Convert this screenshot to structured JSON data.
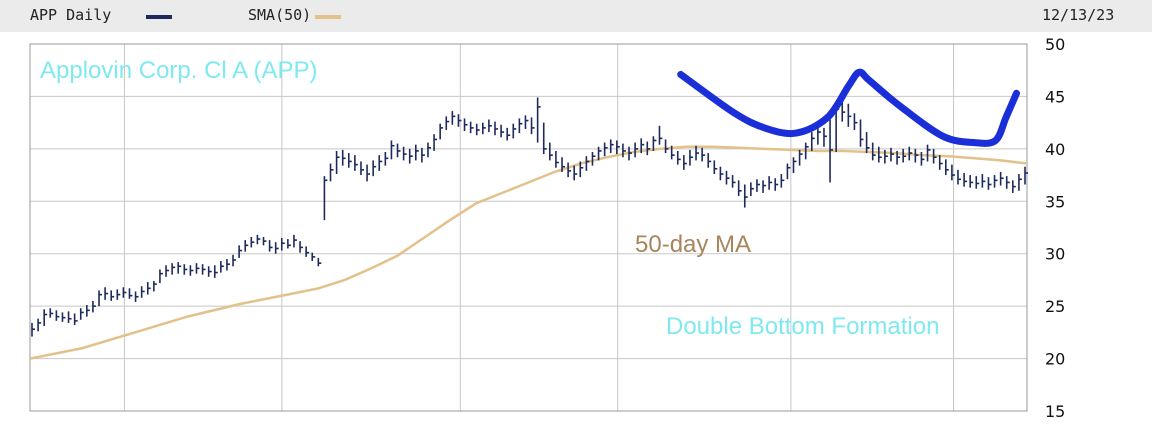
{
  "header": {
    "symbol_label": "APP Daily",
    "sma_label": "SMA(50)",
    "date": "12/13/23"
  },
  "colors": {
    "price": "#1e2a5c",
    "sma": "#e3c18a",
    "header_bg": "#ebebeb",
    "grid": "#c8c8c8",
    "annotation_cyan": "#7fe9f0",
    "annotation_brown": "#a8855c",
    "drawing_blue": "#1b2fd9"
  },
  "chart_data": {
    "type": "ohlc",
    "title": "APP Daily",
    "y_axis_side": "right",
    "ylim": [
      15,
      50
    ],
    "yticks": [
      50,
      45,
      40,
      35,
      30,
      25,
      20,
      15
    ],
    "xlim": [
      0,
      190
    ],
    "x_gridlines": [
      18,
      48,
      82,
      112,
      145,
      176
    ],
    "legend": [
      "APP Daily",
      "SMA(50)"
    ],
    "grid": true,
    "annotations": [
      {
        "id": "company",
        "text": "Applovin Corp. Cl A (APP)"
      },
      {
        "id": "ma",
        "text": "50-day MA"
      },
      {
        "id": "pattern",
        "text": "Double Bottom Formation"
      }
    ],
    "drawn_curve": [
      [
        124,
        47.1
      ],
      [
        134,
        43.5
      ],
      [
        140,
        42.0
      ],
      [
        146,
        41.5
      ],
      [
        152,
        43.0
      ],
      [
        156,
        46.0
      ],
      [
        158,
        47.3
      ],
      [
        160,
        46.5
      ],
      [
        166,
        44.0
      ],
      [
        174,
        41.2
      ],
      [
        180,
        40.6
      ],
      [
        184,
        40.8
      ],
      [
        186,
        43.0
      ],
      [
        188,
        45.3
      ]
    ],
    "sma_series": [
      [
        0,
        20.0
      ],
      [
        10,
        21.0
      ],
      [
        20,
        22.5
      ],
      [
        30,
        24.0
      ],
      [
        40,
        25.2
      ],
      [
        50,
        26.2
      ],
      [
        55,
        26.7
      ],
      [
        60,
        27.5
      ],
      [
        65,
        28.6
      ],
      [
        70,
        29.8
      ],
      [
        75,
        31.5
      ],
      [
        80,
        33.2
      ],
      [
        85,
        34.8
      ],
      [
        90,
        35.8
      ],
      [
        95,
        36.8
      ],
      [
        100,
        37.8
      ],
      [
        105,
        38.6
      ],
      [
        110,
        39.2
      ],
      [
        115,
        39.7
      ],
      [
        120,
        40.0
      ],
      [
        125,
        40.2
      ],
      [
        130,
        40.2
      ],
      [
        135,
        40.1
      ],
      [
        140,
        40.0
      ],
      [
        145,
        39.9
      ],
      [
        150,
        39.8
      ],
      [
        155,
        39.8
      ],
      [
        160,
        39.7
      ],
      [
        165,
        39.6
      ],
      [
        170,
        39.4
      ],
      [
        175,
        39.3
      ],
      [
        180,
        39.1
      ],
      [
        185,
        38.9
      ],
      [
        190,
        38.6
      ]
    ],
    "price_series": [
      {
        "high": 23.4,
        "low": 22.1,
        "close": 22.8
      },
      {
        "high": 23.8,
        "low": 22.6,
        "close": 23.4
      },
      {
        "high": 24.7,
        "low": 23.1,
        "close": 24.2
      },
      {
        "high": 24.8,
        "low": 23.9,
        "close": 24.3
      },
      {
        "high": 24.6,
        "low": 23.6,
        "close": 24.0
      },
      {
        "high": 24.4,
        "low": 23.5,
        "close": 23.9
      },
      {
        "high": 24.5,
        "low": 23.4,
        "close": 23.8
      },
      {
        "high": 24.3,
        "low": 23.2,
        "close": 23.6
      },
      {
        "high": 24.8,
        "low": 23.7,
        "close": 24.4
      },
      {
        "high": 25.1,
        "low": 24.0,
        "close": 24.6
      },
      {
        "high": 25.5,
        "low": 24.4,
        "close": 25.0
      },
      {
        "high": 26.5,
        "low": 25.0,
        "close": 26.1
      },
      {
        "high": 26.8,
        "low": 25.6,
        "close": 26.2
      },
      {
        "high": 26.5,
        "low": 25.5,
        "close": 25.9
      },
      {
        "high": 26.6,
        "low": 25.6,
        "close": 26.1
      },
      {
        "high": 26.8,
        "low": 25.8,
        "close": 26.3
      },
      {
        "high": 26.7,
        "low": 25.7,
        "close": 26.0
      },
      {
        "high": 26.4,
        "low": 25.4,
        "close": 25.9
      },
      {
        "high": 26.9,
        "low": 25.8,
        "close": 26.4
      },
      {
        "high": 27.3,
        "low": 26.1,
        "close": 26.7
      },
      {
        "high": 27.4,
        "low": 26.4,
        "close": 27.1
      },
      {
        "high": 28.5,
        "low": 27.2,
        "close": 28.1
      },
      {
        "high": 28.9,
        "low": 27.8,
        "close": 28.4
      },
      {
        "high": 29.1,
        "low": 28.0,
        "close": 28.7
      },
      {
        "high": 29.2,
        "low": 28.1,
        "close": 28.8
      },
      {
        "high": 29.0,
        "low": 28.0,
        "close": 28.5
      },
      {
        "high": 28.9,
        "low": 27.9,
        "close": 28.4
      },
      {
        "high": 29.1,
        "low": 28.1,
        "close": 28.6
      },
      {
        "high": 29.0,
        "low": 28.0,
        "close": 28.5
      },
      {
        "high": 28.8,
        "low": 27.8,
        "close": 28.3
      },
      {
        "high": 28.9,
        "low": 27.7,
        "close": 28.2
      },
      {
        "high": 29.3,
        "low": 28.2,
        "close": 28.8
      },
      {
        "high": 29.5,
        "low": 28.4,
        "close": 29.0
      },
      {
        "high": 29.9,
        "low": 28.8,
        "close": 29.4
      },
      {
        "high": 30.8,
        "low": 29.6,
        "close": 30.3
      },
      {
        "high": 31.3,
        "low": 30.2,
        "close": 30.8
      },
      {
        "high": 31.6,
        "low": 30.6,
        "close": 31.1
      },
      {
        "high": 31.8,
        "low": 30.9,
        "close": 31.4
      },
      {
        "high": 31.6,
        "low": 30.8,
        "close": 31.2
      },
      {
        "high": 31.3,
        "low": 30.2,
        "close": 30.6
      },
      {
        "high": 31.1,
        "low": 30.0,
        "close": 30.5
      },
      {
        "high": 31.5,
        "low": 30.3,
        "close": 31.0
      },
      {
        "high": 31.4,
        "low": 30.5,
        "close": 30.8
      },
      {
        "high": 31.8,
        "low": 30.6,
        "close": 31.3
      },
      {
        "high": 31.2,
        "low": 30.1,
        "close": 30.6
      },
      {
        "high": 30.7,
        "low": 29.7,
        "close": 30.1
      },
      {
        "high": 30.1,
        "low": 29.3,
        "close": 29.7
      },
      {
        "high": 29.6,
        "low": 28.8,
        "close": 29.1
      },
      {
        "high": 37.4,
        "low": 33.2,
        "close": 37.0
      },
      {
        "high": 38.6,
        "low": 36.9,
        "close": 38.0
      },
      {
        "high": 39.8,
        "low": 37.6,
        "close": 39.2
      },
      {
        "high": 39.9,
        "low": 38.4,
        "close": 39.1
      },
      {
        "high": 39.6,
        "low": 38.2,
        "close": 38.8
      },
      {
        "high": 39.4,
        "low": 37.9,
        "close": 38.5
      },
      {
        "high": 38.8,
        "low": 37.5,
        "close": 38.0
      },
      {
        "high": 38.5,
        "low": 36.9,
        "close": 37.6
      },
      {
        "high": 38.9,
        "low": 37.4,
        "close": 38.3
      },
      {
        "high": 39.4,
        "low": 37.9,
        "close": 38.8
      },
      {
        "high": 39.7,
        "low": 38.4,
        "close": 39.1
      },
      {
        "high": 40.8,
        "low": 39.0,
        "close": 40.3
      },
      {
        "high": 40.5,
        "low": 39.2,
        "close": 39.8
      },
      {
        "high": 40.2,
        "low": 38.9,
        "close": 39.5
      },
      {
        "high": 40.0,
        "low": 38.6,
        "close": 39.3
      },
      {
        "high": 40.4,
        "low": 38.9,
        "close": 39.8
      },
      {
        "high": 40.1,
        "low": 38.7,
        "close": 39.4
      },
      {
        "high": 40.6,
        "low": 39.2,
        "close": 40.1
      },
      {
        "high": 41.4,
        "low": 39.8,
        "close": 40.9
      },
      {
        "high": 42.4,
        "low": 40.9,
        "close": 42.0
      },
      {
        "high": 43.1,
        "low": 41.8,
        "close": 42.6
      },
      {
        "high": 43.6,
        "low": 42.3,
        "close": 43.1
      },
      {
        "high": 43.3,
        "low": 42.1,
        "close": 42.7
      },
      {
        "high": 42.9,
        "low": 41.7,
        "close": 42.3
      },
      {
        "high": 42.6,
        "low": 41.5,
        "close": 42.0
      },
      {
        "high": 42.4,
        "low": 41.3,
        "close": 41.8
      },
      {
        "high": 42.5,
        "low": 41.4,
        "close": 42.0
      },
      {
        "high": 42.8,
        "low": 41.6,
        "close": 42.2
      },
      {
        "high": 42.6,
        "low": 41.3,
        "close": 41.9
      },
      {
        "high": 42.3,
        "low": 41.1,
        "close": 41.6
      },
      {
        "high": 42.0,
        "low": 40.8,
        "close": 41.3
      },
      {
        "high": 42.4,
        "low": 41.0,
        "close": 41.9
      },
      {
        "high": 42.9,
        "low": 41.5,
        "close": 42.4
      },
      {
        "high": 43.2,
        "low": 41.9,
        "close": 42.7
      },
      {
        "high": 43.0,
        "low": 41.4,
        "close": 42.0
      },
      {
        "high": 44.9,
        "low": 40.6,
        "close": 44.0
      },
      {
        "high": 42.5,
        "low": 39.5,
        "close": 40.0
      },
      {
        "high": 40.6,
        "low": 38.9,
        "close": 39.4
      },
      {
        "high": 39.8,
        "low": 38.2,
        "close": 38.7
      },
      {
        "high": 39.2,
        "low": 37.8,
        "close": 38.3
      },
      {
        "high": 38.7,
        "low": 37.3,
        "close": 37.9
      },
      {
        "high": 38.4,
        "low": 37.0,
        "close": 37.6
      },
      {
        "high": 38.8,
        "low": 37.3,
        "close": 38.2
      },
      {
        "high": 39.3,
        "low": 37.9,
        "close": 38.8
      },
      {
        "high": 39.7,
        "low": 38.4,
        "close": 39.3
      },
      {
        "high": 40.2,
        "low": 38.9,
        "close": 39.8
      },
      {
        "high": 40.6,
        "low": 39.3,
        "close": 40.1
      },
      {
        "high": 40.9,
        "low": 39.6,
        "close": 40.4
      },
      {
        "high": 40.8,
        "low": 39.5,
        "close": 40.2
      },
      {
        "high": 40.5,
        "low": 39.2,
        "close": 39.8
      },
      {
        "high": 40.2,
        "low": 38.9,
        "close": 39.6
      },
      {
        "high": 40.6,
        "low": 39.2,
        "close": 40.0
      },
      {
        "high": 41.0,
        "low": 39.6,
        "close": 40.4
      },
      {
        "high": 40.7,
        "low": 39.4,
        "close": 40.0
      },
      {
        "high": 41.2,
        "low": 39.8,
        "close": 40.8
      },
      {
        "high": 42.2,
        "low": 40.4,
        "close": 41.0
      },
      {
        "high": 40.9,
        "low": 39.6,
        "close": 40.0
      },
      {
        "high": 40.3,
        "low": 39.0,
        "close": 39.4
      },
      {
        "high": 39.8,
        "low": 38.5,
        "close": 39.0
      },
      {
        "high": 39.4,
        "low": 38.0,
        "close": 38.6
      },
      {
        "high": 39.9,
        "low": 38.4,
        "close": 39.2
      },
      {
        "high": 40.3,
        "low": 38.9,
        "close": 39.6
      },
      {
        "high": 40.1,
        "low": 38.8,
        "close": 39.4
      },
      {
        "high": 39.6,
        "low": 38.2,
        "close": 38.8
      },
      {
        "high": 38.9,
        "low": 37.6,
        "close": 38.1
      },
      {
        "high": 38.3,
        "low": 37.0,
        "close": 37.6
      },
      {
        "high": 37.9,
        "low": 36.6,
        "close": 37.2
      },
      {
        "high": 37.5,
        "low": 36.3,
        "close": 36.8
      },
      {
        "high": 37.0,
        "low": 35.5,
        "close": 36.0
      },
      {
        "high": 36.6,
        "low": 34.4,
        "close": 35.4
      },
      {
        "high": 36.8,
        "low": 35.5,
        "close": 36.2
      },
      {
        "high": 37.1,
        "low": 35.9,
        "close": 36.6
      },
      {
        "high": 37.0,
        "low": 35.8,
        "close": 36.5
      },
      {
        "high": 37.4,
        "low": 36.1,
        "close": 36.8
      },
      {
        "high": 37.2,
        "low": 36.0,
        "close": 36.6
      },
      {
        "high": 37.6,
        "low": 36.3,
        "close": 37.0
      },
      {
        "high": 38.6,
        "low": 37.1,
        "close": 38.2
      },
      {
        "high": 39.2,
        "low": 37.7,
        "close": 38.8
      },
      {
        "high": 39.9,
        "low": 38.4,
        "close": 39.5
      },
      {
        "high": 40.6,
        "low": 39.0,
        "close": 40.2
      },
      {
        "high": 41.6,
        "low": 39.8,
        "close": 41.0
      },
      {
        "high": 42.4,
        "low": 40.4,
        "close": 41.6
      },
      {
        "high": 42.0,
        "low": 40.2,
        "close": 41.2
      },
      {
        "high": 42.8,
        "low": 36.8,
        "close": 39.9
      },
      {
        "high": 44.4,
        "low": 39.7,
        "close": 43.8
      },
      {
        "high": 44.8,
        "low": 42.6,
        "close": 43.5
      },
      {
        "high": 44.3,
        "low": 42.1,
        "close": 43.1
      },
      {
        "high": 43.4,
        "low": 41.8,
        "close": 42.5
      },
      {
        "high": 42.8,
        "low": 40.2,
        "close": 40.9
      },
      {
        "high": 41.6,
        "low": 39.6,
        "close": 40.1
      },
      {
        "high": 40.6,
        "low": 38.9,
        "close": 39.4
      },
      {
        "high": 40.2,
        "low": 38.7,
        "close": 39.2
      },
      {
        "high": 39.9,
        "low": 38.6,
        "close": 39.3
      },
      {
        "high": 40.1,
        "low": 38.8,
        "close": 39.5
      },
      {
        "high": 39.8,
        "low": 38.5,
        "close": 39.2
      },
      {
        "high": 40.0,
        "low": 38.7,
        "close": 39.3
      },
      {
        "high": 40.2,
        "low": 38.9,
        "close": 39.6
      },
      {
        "high": 40.0,
        "low": 38.7,
        "close": 39.4
      },
      {
        "high": 39.7,
        "low": 38.4,
        "close": 39.0
      },
      {
        "high": 40.4,
        "low": 38.8,
        "close": 39.9
      },
      {
        "high": 40.0,
        "low": 38.6,
        "close": 39.2
      },
      {
        "high": 39.4,
        "low": 38.0,
        "close": 38.6
      },
      {
        "high": 39.0,
        "low": 37.5,
        "close": 38.0
      },
      {
        "high": 38.5,
        "low": 37.0,
        "close": 37.5
      },
      {
        "high": 38.0,
        "low": 36.6,
        "close": 37.1
      },
      {
        "high": 37.7,
        "low": 36.4,
        "close": 36.9
      },
      {
        "high": 37.5,
        "low": 36.3,
        "close": 36.8
      },
      {
        "high": 37.4,
        "low": 36.2,
        "close": 36.7
      },
      {
        "high": 37.6,
        "low": 36.3,
        "close": 36.9
      },
      {
        "high": 37.3,
        "low": 36.1,
        "close": 36.6
      },
      {
        "high": 37.5,
        "low": 36.3,
        "close": 37.0
      },
      {
        "high": 37.8,
        "low": 36.5,
        "close": 37.2
      },
      {
        "high": 37.4,
        "low": 36.2,
        "close": 36.8
      },
      {
        "high": 37.0,
        "low": 35.8,
        "close": 36.4
      },
      {
        "high": 37.6,
        "low": 36.0,
        "close": 37.1
      },
      {
        "high": 38.3,
        "low": 36.6,
        "close": 37.7
      }
    ]
  }
}
